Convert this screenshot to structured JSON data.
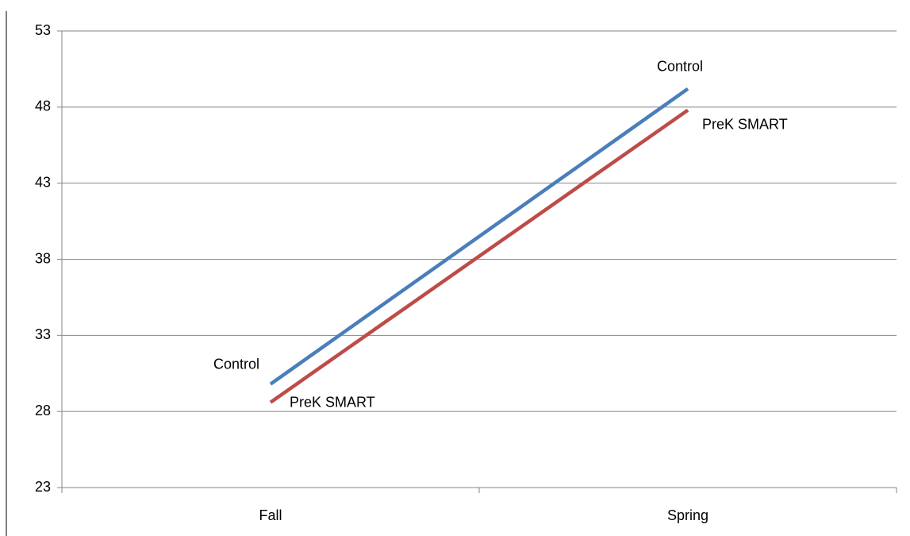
{
  "chart_data": {
    "type": "line",
    "categories": [
      "Fall",
      "Spring"
    ],
    "series": [
      {
        "name": "Control",
        "color": "#4a7ebb",
        "values": [
          29.8,
          49.2
        ]
      },
      {
        "name": "PreK SMART",
        "color": "#be4b48",
        "values": [
          28.6,
          47.8
        ]
      }
    ],
    "ylim": [
      23,
      53
    ],
    "yticks": [
      23,
      28,
      33,
      38,
      43,
      48,
      53
    ],
    "grid": true
  }
}
